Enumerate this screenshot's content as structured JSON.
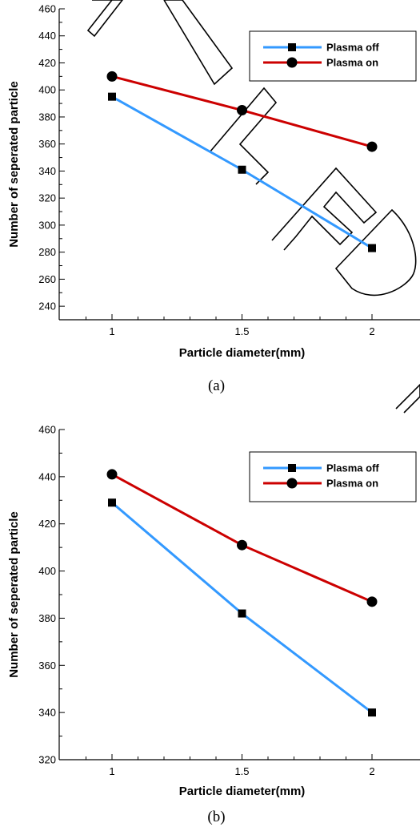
{
  "chart_data": [
    {
      "type": "line",
      "caption": "(a)",
      "xlabel": "Particle diameter(mm)",
      "ylabel": "Number of seperated particle",
      "x": [
        1,
        1.5,
        2
      ],
      "xticks": [
        "1",
        "1.5",
        "2"
      ],
      "ylim": [
        230,
        460
      ],
      "yticks": [
        240,
        260,
        280,
        300,
        320,
        340,
        360,
        380,
        400,
        420,
        440,
        460
      ],
      "legend_position": "top-right",
      "series": [
        {
          "name": "Plasma off",
          "color": "#3399ff",
          "marker": "square",
          "values": [
            395,
            341,
            283
          ]
        },
        {
          "name": "Plasma on",
          "color": "#cc0000",
          "marker": "circle",
          "values": [
            410,
            385,
            358
          ]
        }
      ]
    },
    {
      "type": "line",
      "caption": "(b)",
      "xlabel": "Particle diameter(mm)",
      "ylabel": "Number of seperated particle",
      "x": [
        1,
        1.5,
        2
      ],
      "xticks": [
        "1",
        "1.5",
        "2"
      ],
      "ylim": [
        320,
        460
      ],
      "yticks": [
        320,
        340,
        360,
        380,
        400,
        420,
        440,
        460
      ],
      "legend_position": "top-right",
      "series": [
        {
          "name": "Plasma off",
          "color": "#3399ff",
          "marker": "square",
          "values": [
            429,
            382,
            340
          ]
        },
        {
          "name": "Plasma on",
          "color": "#cc0000",
          "marker": "circle",
          "values": [
            441,
            411,
            387
          ]
        }
      ]
    }
  ]
}
